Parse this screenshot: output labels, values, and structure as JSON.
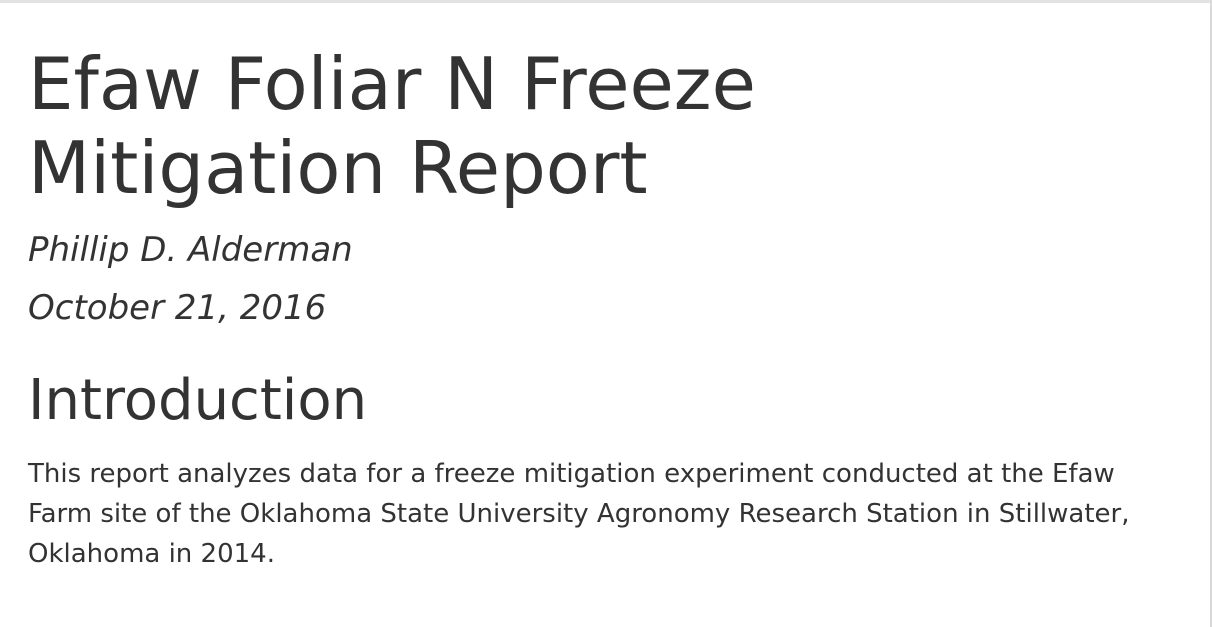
{
  "document": {
    "title_line1": "Efaw Foliar N Freeze",
    "title_line2": "Mitigation Report",
    "author": "Phillip D. Alderman",
    "date": "October 21, 2016"
  },
  "sections": [
    {
      "heading": "Introduction",
      "paragraph": "This report analyzes data for a freeze mitigation experiment conducted at the Efaw Farm site of the Oklahoma State University Agronomy Research Station in Stillwater, Oklahoma in 2014."
    }
  ]
}
